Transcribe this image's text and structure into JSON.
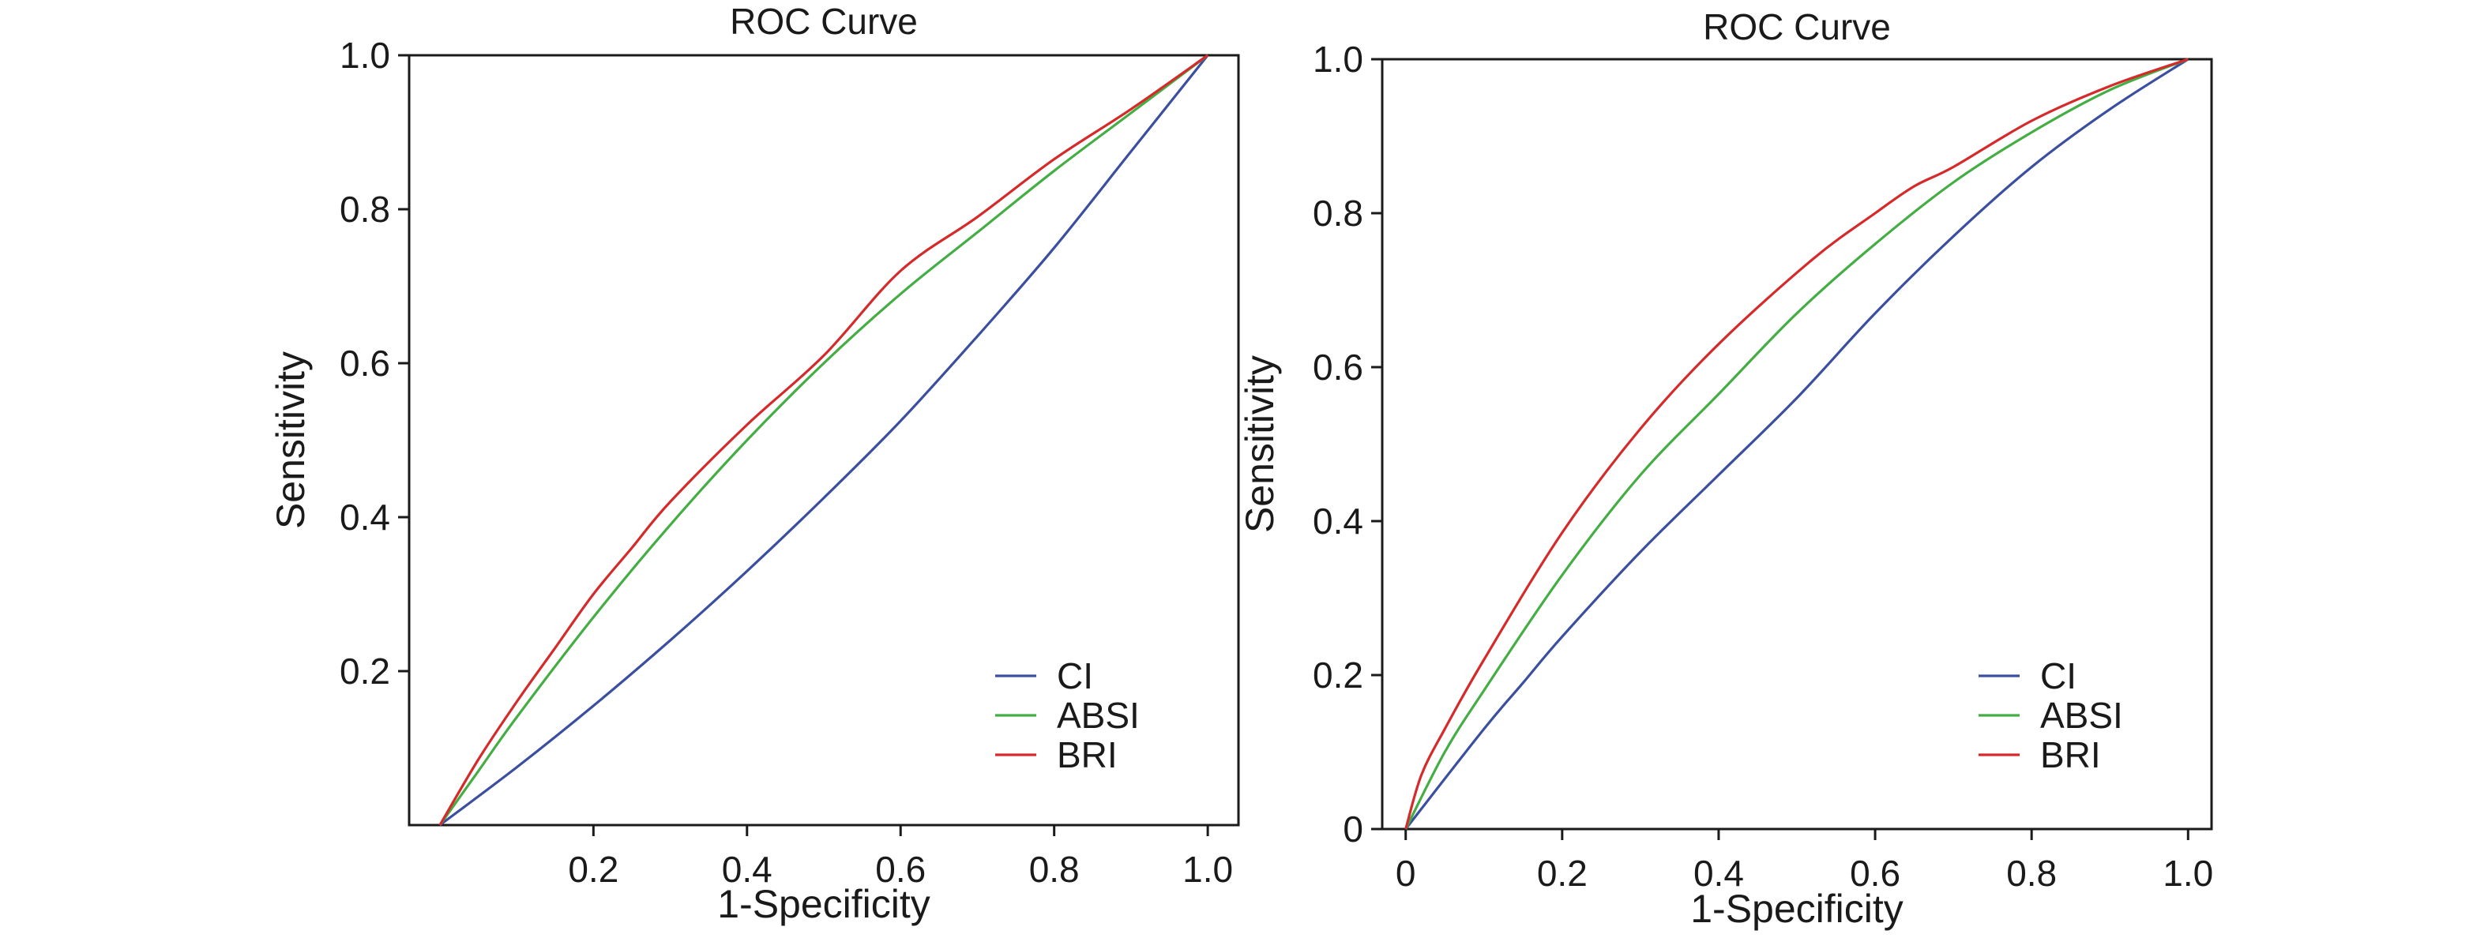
{
  "chart_data": [
    {
      "type": "line",
      "title": "ROC Curve",
      "xlabel": "1-Specificity",
      "ylabel": "Sensitivity",
      "xlim": [
        -0.04,
        1.04
      ],
      "ylim": [
        0,
        1
      ],
      "xticks": [
        {
          "value": 0.2,
          "label": "0.2"
        },
        {
          "value": 0.4,
          "label": "0.4"
        },
        {
          "value": 0.6,
          "label": "0.6"
        },
        {
          "value": 0.8,
          "label": "0.8"
        },
        {
          "value": 1.0,
          "label": "1.0"
        }
      ],
      "yticks": [
        {
          "value": 0.2,
          "label": "0.2"
        },
        {
          "value": 0.4,
          "label": "0.4"
        },
        {
          "value": 0.6,
          "label": "0.6"
        },
        {
          "value": 0.8,
          "label": "0.8"
        },
        {
          "value": 1.0,
          "label": "1.0"
        }
      ],
      "grid": false,
      "legend_position": "lower-right",
      "series": [
        {
          "name": "CI",
          "color": "#3b4fa0",
          "x": [
            0,
            0.1,
            0.2,
            0.3,
            0.4,
            0.5,
            0.6,
            0.7,
            0.8,
            0.9,
            1.0
          ],
          "y": [
            0,
            0.075,
            0.155,
            0.24,
            0.33,
            0.425,
            0.525,
            0.635,
            0.75,
            0.875,
            1.0
          ]
        },
        {
          "name": "ABSI",
          "color": "#44ad44",
          "x": [
            0,
            0.05,
            0.1,
            0.2,
            0.3,
            0.4,
            0.5,
            0.6,
            0.7,
            0.8,
            0.9,
            1.0
          ],
          "y": [
            0,
            0.07,
            0.14,
            0.27,
            0.39,
            0.5,
            0.6,
            0.69,
            0.77,
            0.85,
            0.925,
            1.0
          ]
        },
        {
          "name": "BRI",
          "color": "#d62a2a",
          "x": [
            0,
            0.05,
            0.1,
            0.15,
            0.2,
            0.25,
            0.3,
            0.4,
            0.5,
            0.6,
            0.7,
            0.8,
            0.9,
            1.0
          ],
          "y": [
            0,
            0.085,
            0.16,
            0.23,
            0.3,
            0.36,
            0.42,
            0.52,
            0.61,
            0.72,
            0.79,
            0.865,
            0.93,
            1.0
          ]
        }
      ]
    },
    {
      "type": "line",
      "title": "ROC Curve",
      "xlabel": "1-Specificity",
      "ylabel": "Sensitivity",
      "xlim": [
        -0.03,
        1.03
      ],
      "ylim": [
        0,
        1
      ],
      "xticks": [
        {
          "value": 0,
          "label": "0"
        },
        {
          "value": 0.2,
          "label": "0.2"
        },
        {
          "value": 0.4,
          "label": "0.4"
        },
        {
          "value": 0.6,
          "label": "0.6"
        },
        {
          "value": 0.8,
          "label": "0.8"
        },
        {
          "value": 1.0,
          "label": "1.0"
        }
      ],
      "yticks": [
        {
          "value": 0,
          "label": "0"
        },
        {
          "value": 0.2,
          "label": "0.2"
        },
        {
          "value": 0.4,
          "label": "0.4"
        },
        {
          "value": 0.6,
          "label": "0.6"
        },
        {
          "value": 0.8,
          "label": "0.8"
        },
        {
          "value": 1.0,
          "label": "1.0"
        }
      ],
      "grid": false,
      "legend_position": "lower-right",
      "series": [
        {
          "name": "CI",
          "color": "#3b4fa0",
          "x": [
            0,
            0.1,
            0.15,
            0.2,
            0.3,
            0.4,
            0.5,
            0.6,
            0.7,
            0.8,
            0.9,
            1.0
          ],
          "y": [
            0,
            0.13,
            0.19,
            0.25,
            0.36,
            0.46,
            0.56,
            0.67,
            0.77,
            0.86,
            0.935,
            1.0
          ]
        },
        {
          "name": "ABSI",
          "color": "#44ad44",
          "x": [
            0,
            0.05,
            0.1,
            0.2,
            0.3,
            0.4,
            0.5,
            0.6,
            0.7,
            0.8,
            0.9,
            1.0
          ],
          "y": [
            0,
            0.1,
            0.18,
            0.33,
            0.46,
            0.565,
            0.67,
            0.76,
            0.84,
            0.905,
            0.96,
            1.0
          ]
        },
        {
          "name": "BRI",
          "color": "#d62a2a",
          "x": [
            0,
            0.02,
            0.05,
            0.1,
            0.2,
            0.3,
            0.4,
            0.52,
            0.6,
            0.65,
            0.7,
            0.8,
            0.9,
            1.0
          ],
          "y": [
            0,
            0.07,
            0.13,
            0.22,
            0.385,
            0.52,
            0.63,
            0.74,
            0.8,
            0.835,
            0.86,
            0.92,
            0.965,
            1.0
          ]
        }
      ]
    }
  ]
}
